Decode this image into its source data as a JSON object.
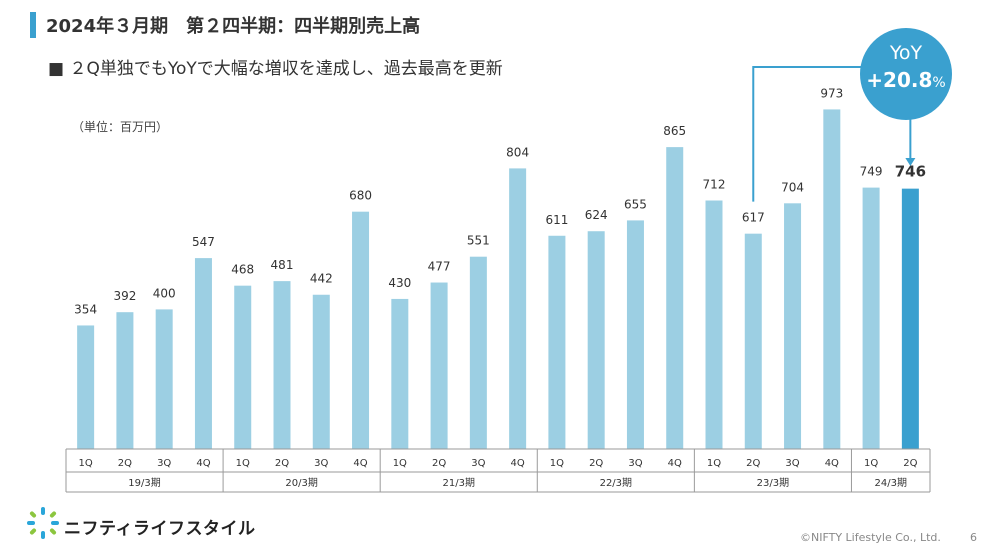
{
  "header": {
    "title": "2024年３月期　第２四半期：四半期別売上高",
    "subtitle": "■ ２Q単独でもYoYで大幅な増収を達成し、過去最高を更新",
    "unit_note": "（単位：百万円）"
  },
  "yoy_callout": {
    "label": "YoY",
    "value": "+20.8",
    "unit": "%"
  },
  "footer": {
    "logo_text": "ニフティライフスタイル",
    "copyright": "©NIFTY Lifestyle Co., Ltd.",
    "page_number": "6"
  },
  "colors": {
    "bar": "#9ccfe3",
    "bar_highlight": "#3aa0cf",
    "accent": "#3aa0cf"
  },
  "chart_data": {
    "type": "bar",
    "title": "",
    "ylabel": "",
    "ylim": [
      0,
      1000
    ],
    "grid": false,
    "categories": [
      "1Q",
      "2Q",
      "3Q",
      "4Q",
      "1Q",
      "2Q",
      "3Q",
      "4Q",
      "1Q",
      "2Q",
      "3Q",
      "4Q",
      "1Q",
      "2Q",
      "3Q",
      "4Q",
      "1Q",
      "2Q",
      "3Q",
      "4Q",
      "1Q",
      "2Q"
    ],
    "groups": [
      {
        "label": "19/3期",
        "count": 4
      },
      {
        "label": "20/3期",
        "count": 4
      },
      {
        "label": "21/3期",
        "count": 4
      },
      {
        "label": "22/3期",
        "count": 4
      },
      {
        "label": "23/3期",
        "count": 4
      },
      {
        "label": "24/3期",
        "count": 2
      }
    ],
    "values": [
      354,
      392,
      400,
      547,
      468,
      481,
      442,
      680,
      430,
      477,
      551,
      804,
      611,
      624,
      655,
      865,
      712,
      617,
      704,
      973,
      749,
      746
    ],
    "value_labels": [
      "354",
      "392",
      "400",
      "547",
      "468",
      "481",
      "442",
      "680",
      "430",
      "477",
      "551",
      "804",
      "611",
      "624",
      "655",
      "865",
      "712",
      "617",
      "704",
      "973",
      "749",
      "746"
    ],
    "highlight_index": 21
  }
}
